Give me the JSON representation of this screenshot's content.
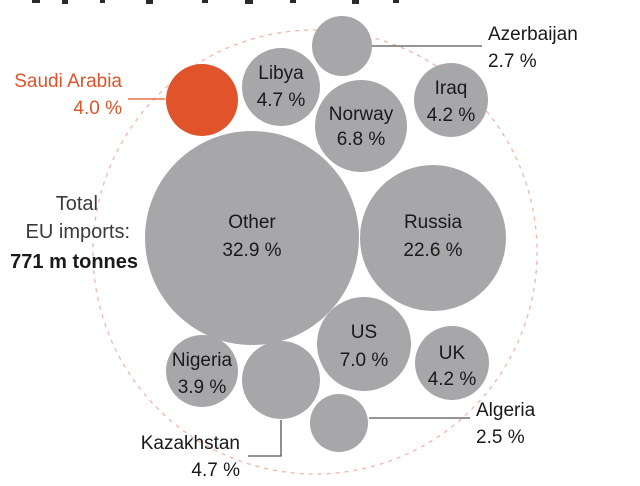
{
  "colors": {
    "bubble": "#a7a7a9",
    "highlight": "#e0532b",
    "text": "#1a1a1a",
    "ring": "#f0b7a4",
    "leader": "#555555"
  },
  "total": {
    "line1": "Total",
    "line2": "EU imports:",
    "value": "771 m tonnes"
  },
  "chart_data": {
    "type": "bubble",
    "unit": "%",
    "total_label": "Total EU imports:",
    "total_value": "771 m tonnes",
    "highlight_color": "#e0532b",
    "series": [
      {
        "name": "Other",
        "value": 32.9,
        "value_label": "32.9 %",
        "label_inside": true
      },
      {
        "name": "Russia",
        "value": 22.6,
        "value_label": "22.6 %",
        "label_inside": true
      },
      {
        "name": "US",
        "value": 7.0,
        "value_label": "7.0 %",
        "label_inside": true
      },
      {
        "name": "Norway",
        "value": 6.8,
        "value_label": "6.8 %",
        "label_inside": true
      },
      {
        "name": "Libya",
        "value": 4.7,
        "value_label": "4.7 %",
        "label_inside": true
      },
      {
        "name": "Kazakhstan",
        "value": 4.7,
        "value_label": "4.7 %",
        "label_inside": false
      },
      {
        "name": "Iraq",
        "value": 4.2,
        "value_label": "4.2 %",
        "label_inside": true
      },
      {
        "name": "UK",
        "value": 4.2,
        "value_label": "4.2 %",
        "label_inside": true
      },
      {
        "name": "Saudi Arabia",
        "value": 4.0,
        "value_label": "4.0 %",
        "label_inside": false,
        "highlight": true
      },
      {
        "name": "Nigeria",
        "value": 3.9,
        "value_label": "3.9 %",
        "label_inside": true
      },
      {
        "name": "Azerbaijan",
        "value": 2.7,
        "value_label": "2.7 %",
        "label_inside": false
      },
      {
        "name": "Algeria",
        "value": 2.5,
        "value_label": "2.5 %",
        "label_inside": false
      }
    ]
  }
}
